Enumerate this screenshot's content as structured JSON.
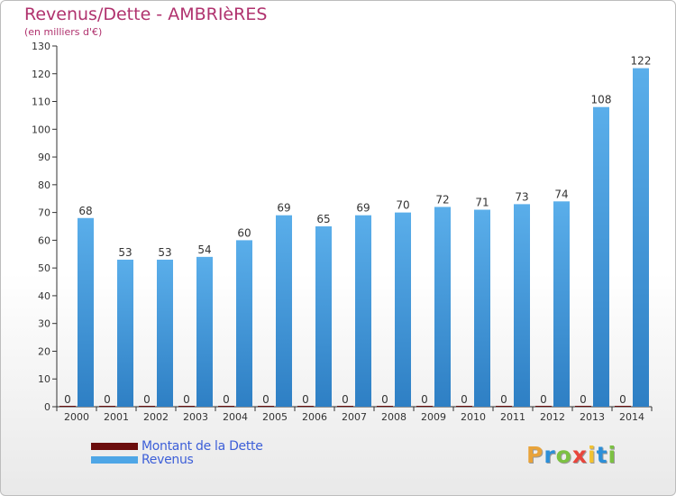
{
  "header": {
    "title": "Revenus/Dette - AMBRIèRES",
    "subtitle": "(en milliers d'€)"
  },
  "legend": {
    "items": [
      {
        "label": "Montant de la Dette",
        "color": "#6b0d0d"
      },
      {
        "label": "Revenus",
        "color": "#4ea6e6"
      }
    ]
  },
  "logo": {
    "letters": [
      "P",
      "r",
      "o",
      "x",
      "i",
      "t",
      "i"
    ],
    "colors": [
      "#e8a33a",
      "#2c8fd8",
      "#7cc142",
      "#e8453c",
      "#f2c230",
      "#2c8fd8",
      "#7cc142"
    ]
  },
  "chart_data": {
    "type": "bar",
    "title": "Revenus/Dette - AMBRIèRES",
    "subtitle": "(en milliers d'€)",
    "categories": [
      "2000",
      "2001",
      "2002",
      "2003",
      "2004",
      "2005",
      "2006",
      "2007",
      "2008",
      "2009",
      "2010",
      "2011",
      "2012",
      "2013",
      "2014"
    ],
    "series": [
      {
        "name": "Montant de la Dette",
        "values": [
          0,
          0,
          0,
          0,
          0,
          0,
          0,
          0,
          0,
          0,
          0,
          0,
          0,
          0,
          0
        ],
        "color": "#6b0d0d"
      },
      {
        "name": "Revenus",
        "values": [
          68,
          53,
          53,
          54,
          60,
          69,
          65,
          69,
          70,
          72,
          71,
          73,
          74,
          108,
          122
        ],
        "color": "#4ea6e6"
      }
    ],
    "ylim": [
      0,
      130
    ],
    "yticks": [
      0,
      10,
      20,
      30,
      40,
      50,
      60,
      70,
      80,
      90,
      100,
      110,
      120,
      130
    ],
    "grid": false,
    "legend_position": "bottom-left"
  }
}
